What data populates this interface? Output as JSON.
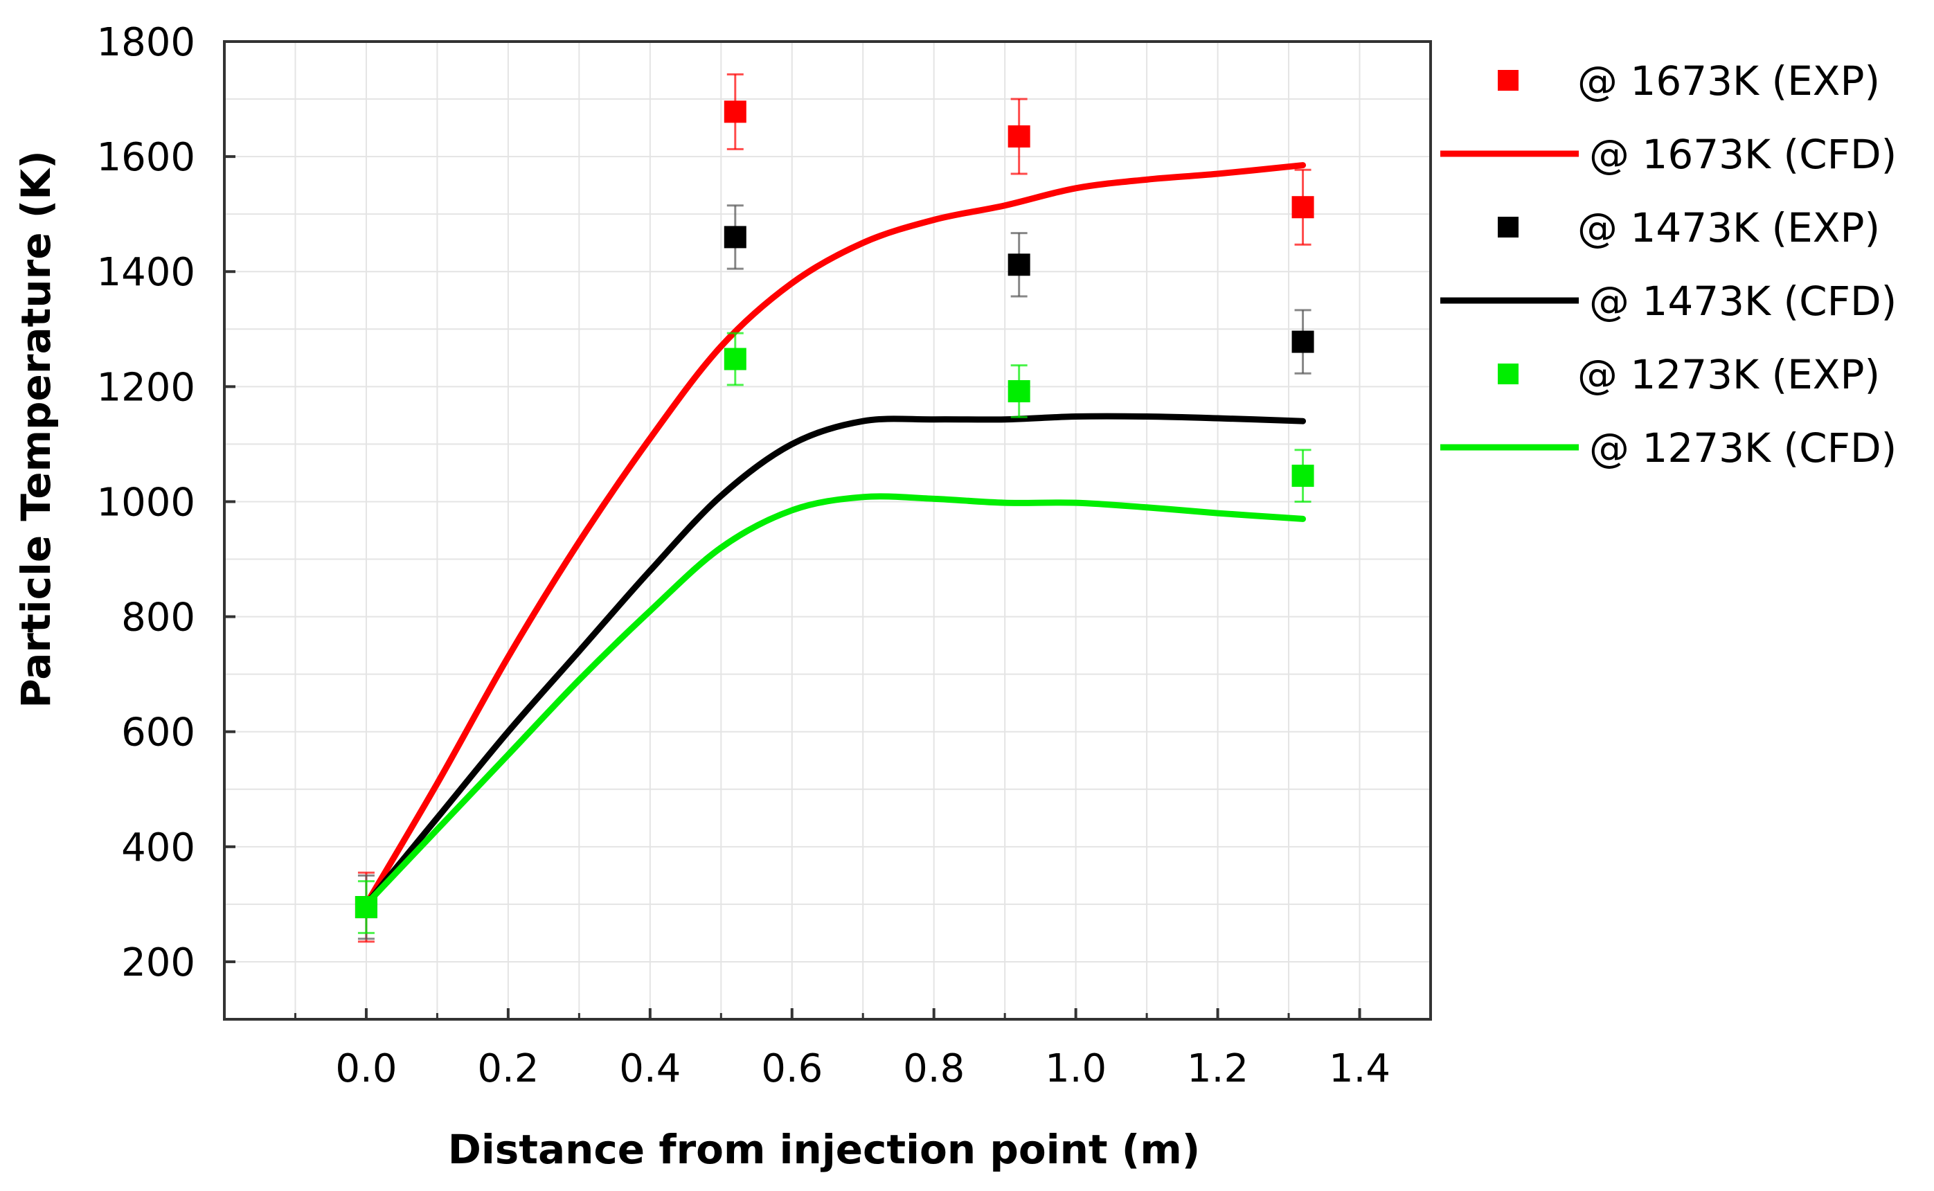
{
  "chart_data": {
    "type": "line",
    "title": "",
    "xlabel": "Distance from injection point (m)",
    "ylabel": "Particle Temperature (K)",
    "xlim": [
      -0.2,
      1.5
    ],
    "ylim": [
      100,
      1800
    ],
    "x_ticks": [
      0.0,
      0.2,
      0.4,
      0.6,
      0.8,
      1.0,
      1.2,
      1.4
    ],
    "x_tick_labels": [
      "0.0",
      "0.2",
      "0.4",
      "0.6",
      "0.8",
      "1.0",
      "1.2",
      "1.4"
    ],
    "y_ticks": [
      200,
      400,
      600,
      800,
      1000,
      1200,
      1400,
      1600,
      1800
    ],
    "y_tick_labels": [
      "200",
      "400",
      "600",
      "800",
      "1000",
      "1200",
      "1400",
      "1600",
      "1800"
    ],
    "grid": true,
    "legend_position": "outside-right",
    "series": [
      {
        "name": "@ 1673K (EXP)",
        "kind": "scatter",
        "color": "#ff0000",
        "x": [
          0.0,
          0.52,
          0.92,
          1.32
        ],
        "y": [
          295,
          1678,
          1635,
          1512
        ],
        "yerr": [
          60,
          65,
          65,
          65
        ]
      },
      {
        "name": "@ 1673K (CFD)",
        "kind": "line",
        "color": "#ff0000",
        "x": [
          0.0,
          0.1,
          0.2,
          0.3,
          0.4,
          0.5,
          0.6,
          0.7,
          0.8,
          0.9,
          1.0,
          1.1,
          1.2,
          1.32
        ],
        "y": [
          300,
          510,
          730,
          930,
          1110,
          1270,
          1380,
          1450,
          1490,
          1515,
          1545,
          1560,
          1570,
          1585
        ]
      },
      {
        "name": "@ 1473K (EXP)",
        "kind": "scatter",
        "color": "#000000",
        "x": [
          0.0,
          0.52,
          0.92,
          1.32
        ],
        "y": [
          295,
          1460,
          1412,
          1278
        ],
        "yerr": [
          55,
          55,
          55,
          55
        ]
      },
      {
        "name": "@ 1473K (CFD)",
        "kind": "line",
        "color": "#000000",
        "x": [
          0.0,
          0.1,
          0.2,
          0.3,
          0.4,
          0.5,
          0.6,
          0.7,
          0.8,
          0.9,
          1.0,
          1.1,
          1.2,
          1.32
        ],
        "y": [
          300,
          450,
          600,
          740,
          880,
          1010,
          1100,
          1140,
          1143,
          1143,
          1148,
          1148,
          1145,
          1140
        ]
      },
      {
        "name": "@ 1273K (EXP)",
        "kind": "scatter",
        "color": "#00ee00",
        "x": [
          0.0,
          0.52,
          0.92,
          1.32
        ],
        "y": [
          295,
          1248,
          1192,
          1045
        ],
        "yerr": [
          45,
          45,
          45,
          45
        ]
      },
      {
        "name": "@ 1273K (CFD)",
        "kind": "line",
        "color": "#00ee00",
        "x": [
          0.0,
          0.1,
          0.2,
          0.3,
          0.4,
          0.5,
          0.6,
          0.7,
          0.8,
          0.9,
          1.0,
          1.1,
          1.2,
          1.32
        ],
        "y": [
          300,
          430,
          560,
          690,
          810,
          920,
          985,
          1008,
          1005,
          998,
          998,
          990,
          980,
          970
        ]
      }
    ]
  }
}
